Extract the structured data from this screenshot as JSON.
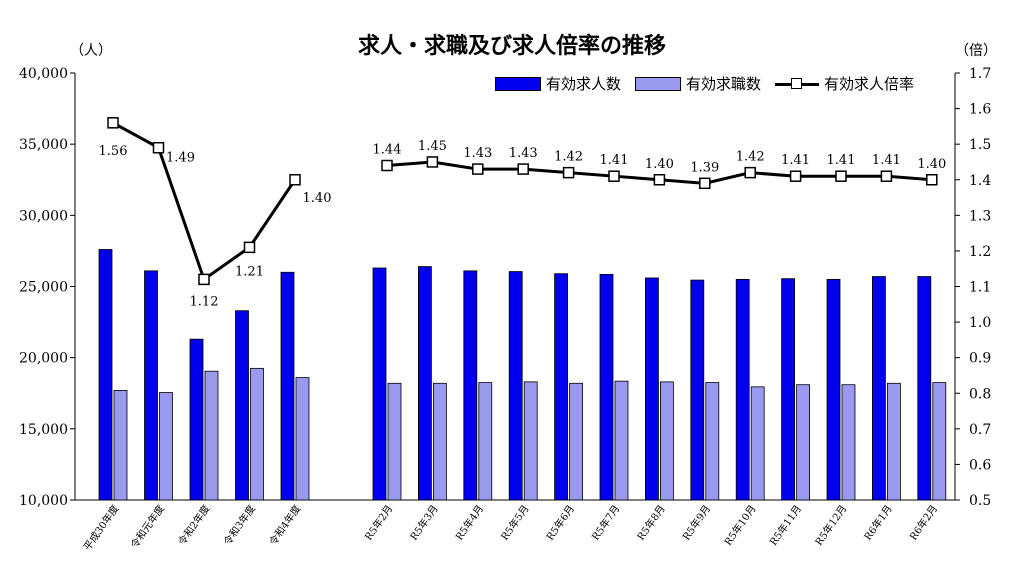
{
  "title": "求人・求職及び求人倍率の推移",
  "left_unit": "（人）",
  "right_unit": "（倍）",
  "legend": [
    {
      "label": "有効求人数",
      "color": "#0000ee"
    },
    {
      "label": "有効求職数",
      "color": "#9999ee"
    },
    {
      "label": "有効求人倍率",
      "color": "#000000"
    }
  ],
  "chart_data": {
    "type": "bar",
    "categories": [
      "平成30年度",
      "令和元年度",
      "令和2年度",
      "令和3年度",
      "令和4年度",
      "R5年2月",
      "R5年3月",
      "R5年4月",
      "R5年5月",
      "R5年6月",
      "R5年7月",
      "R5年8月",
      "R5年9月",
      "R5年10月",
      "R5年11月",
      "R5年12月",
      "R6年1月",
      "R6年2月"
    ],
    "series": [
      {
        "name": "有効求人数",
        "type": "bar",
        "axis": "left",
        "color": "#0000ee",
        "values": [
          27600,
          26100,
          21300,
          23300,
          26000,
          26300,
          26400,
          26100,
          26050,
          25900,
          25850,
          25600,
          25450,
          25500,
          25550,
          25500,
          25700,
          25700
        ]
      },
      {
        "name": "有効求職数",
        "type": "bar",
        "axis": "left",
        "color": "#9999ee",
        "values": [
          17700,
          17550,
          19050,
          19250,
          18600,
          18200,
          18200,
          18250,
          18300,
          18200,
          18350,
          18300,
          18250,
          17950,
          18100,
          18100,
          18200,
          18250
        ]
      },
      {
        "name": "有効求人倍率",
        "type": "line",
        "axis": "right",
        "color": "#000000",
        "values": [
          1.56,
          1.49,
          1.12,
          1.21,
          1.4,
          1.44,
          1.45,
          1.43,
          1.43,
          1.42,
          1.41,
          1.4,
          1.39,
          1.42,
          1.41,
          1.41,
          1.41,
          1.4
        ],
        "labels": [
          "1.56",
          "1.49",
          "1.12",
          "1.21",
          "1.40",
          "1.44",
          "1.45",
          "1.43",
          "1.43",
          "1.42",
          "1.41",
          "1.40",
          "1.39",
          "1.42",
          "1.41",
          "1.41",
          "1.41",
          "1.40"
        ]
      }
    ],
    "left_axis": {
      "ylim": [
        10000,
        40000
      ],
      "ticks": [
        "10,000",
        "15,000",
        "20,000",
        "25,000",
        "30,000",
        "35,000",
        "40,000"
      ]
    },
    "right_axis": {
      "ylim": [
        0.5,
        1.7
      ],
      "ticks": [
        "0.5",
        "0.6",
        "0.7",
        "0.8",
        "0.9",
        "1.0",
        "1.1",
        "1.2",
        "1.3",
        "1.4",
        "1.5",
        "1.6",
        "1.7"
      ]
    },
    "line_break_after_index": 4,
    "grid": false,
    "legend_position": "top-right"
  }
}
